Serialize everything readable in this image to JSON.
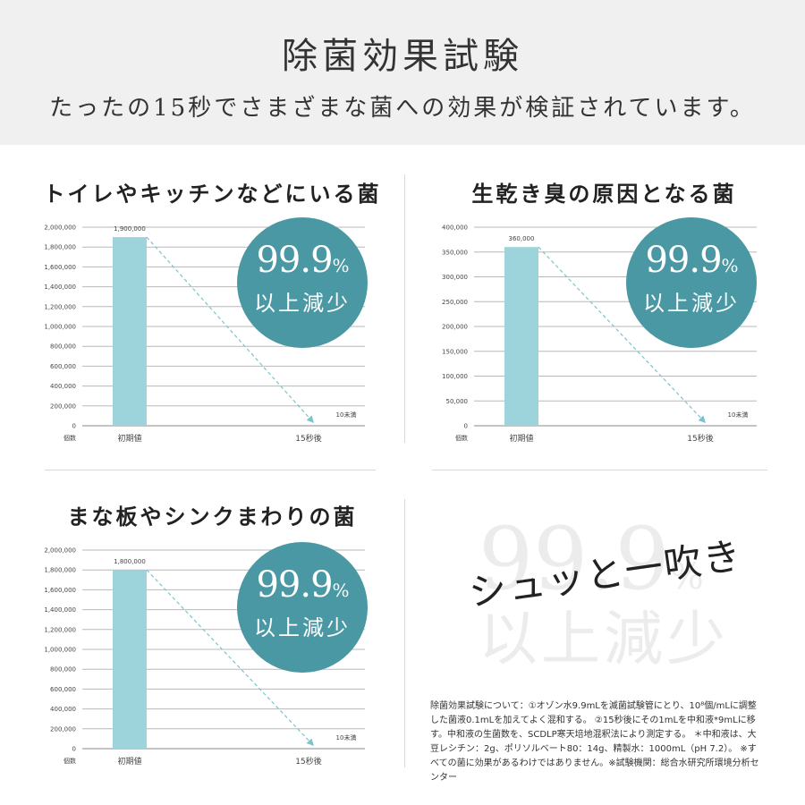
{
  "header": {
    "title": "除菌効果試験",
    "subtitle": "たったの15秒でさまざまな菌への効果が検証されています。"
  },
  "colors": {
    "bar": "#9dd4db",
    "badge": "#4a98a4",
    "arrow": "#7cc4cc",
    "header_bg": "#f0f0f0"
  },
  "panels": [
    {
      "title": "トイレやキッチンなどにいる菌",
      "badge_value": "99.9",
      "badge_unit": "%",
      "badge_label": "以上減少"
    },
    {
      "title": "生乾き臭の原因となる菌",
      "badge_value": "99.9",
      "badge_unit": "%",
      "badge_label": "以上減少"
    },
    {
      "title": "まな板やシンクまわりの菌",
      "badge_value": "99.9",
      "badge_unit": "%",
      "badge_label": "以上減少"
    }
  ],
  "chart_data": [
    {
      "type": "bar",
      "title": "トイレやキッチンなどにいる菌",
      "ylabel": "個数",
      "categories": [
        "初期値",
        "15秒後"
      ],
      "values": [
        1900000,
        10
      ],
      "data_labels": [
        "1,900,000",
        "10未満"
      ],
      "ylim": [
        0,
        2000000
      ],
      "yticks": [
        "2,000,000",
        "1,800,000",
        "1,600,000",
        "1,400,000",
        "1,200,000",
        "1,000,000",
        "800,000",
        "600,000",
        "400,000",
        "200,000",
        "0"
      ],
      "grid": true
    },
    {
      "type": "bar",
      "title": "生乾き臭の原因となる菌",
      "ylabel": "個数",
      "categories": [
        "初期値",
        "15秒後"
      ],
      "values": [
        360000,
        10
      ],
      "data_labels": [
        "360,000",
        "10未満"
      ],
      "ylim": [
        0,
        400000
      ],
      "yticks": [
        "400,000",
        "350,000",
        "300,000",
        "250,000",
        "200,000",
        "150,000",
        "100,000",
        "50,000",
        "0"
      ],
      "grid": true
    },
    {
      "type": "bar",
      "title": "まな板やシンクまわりの菌",
      "ylabel": "個数",
      "categories": [
        "初期値",
        "15秒後"
      ],
      "values": [
        1800000,
        10
      ],
      "data_labels": [
        "1,800,000",
        "10未満"
      ],
      "ylim": [
        0,
        2000000
      ],
      "yticks": [
        "2,000,000",
        "1,800,000",
        "1,600,000",
        "1,400,000",
        "1,200,000",
        "1,000,000",
        "800,000",
        "600,000",
        "400,000",
        "200,000",
        "0"
      ],
      "grid": true
    }
  ],
  "promo": {
    "bg_value": "99.9",
    "bg_unit": "%",
    "bg_label": "以上減少",
    "tagline": "シュッと一吹き"
  },
  "footnote": "除菌効果試験について：①オゾン水9.9mLを滅菌試験管にとり、10⁸個/mLに調整した菌液0.1mLを加えてよく混和する。 ②15秒後にその1mLを中和液*9mLに移す。中和液の生菌数を、SCDLP寒天培地混釈法により測定する。 ＊中和液は、大豆レシチン：2g、ポリソルベート80：14g、精製水：1000mL（pH 7.2）。 ※すべての菌に効果があるわけではありません。※試験機関：総合水研究所環境分析センター"
}
